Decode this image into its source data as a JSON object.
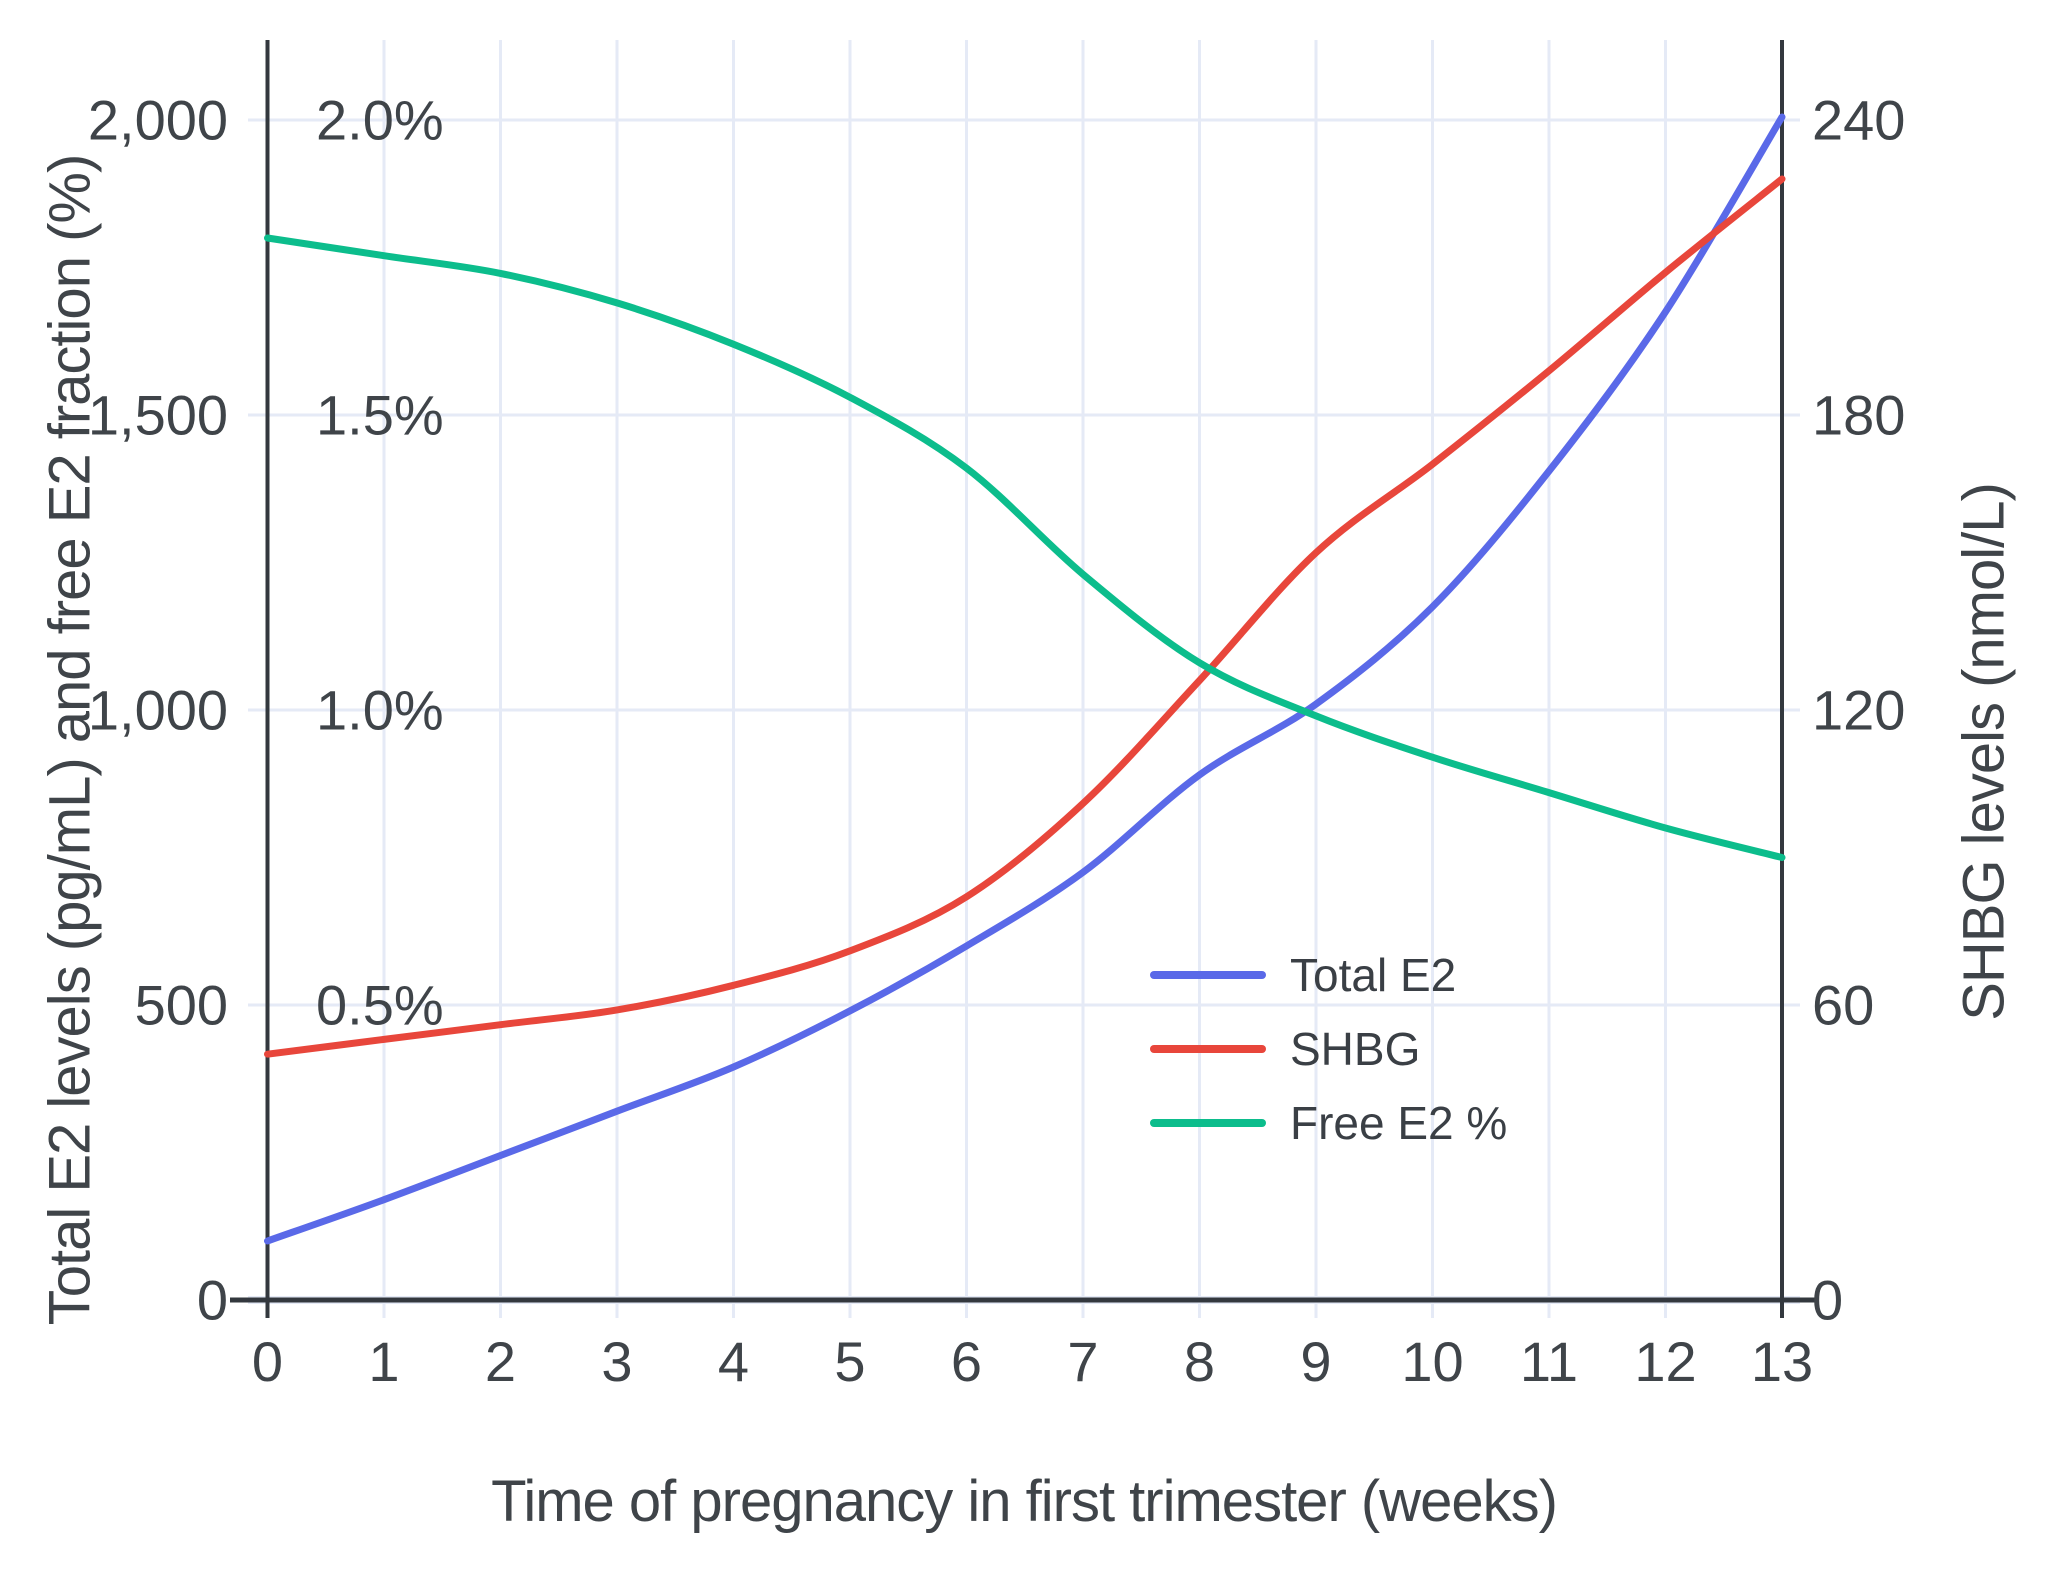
{
  "chart_data": {
    "type": "line",
    "title": "",
    "xlabel": "Time of pregnancy in first trimester (weeks)",
    "ylabel_left": "Total E2 levels (pg/mL) and free E2 fraction (%)",
    "ylabel_right": "SHBG levels (nmol/L)",
    "x": [
      0,
      1,
      2,
      3,
      4,
      5,
      6,
      7,
      8,
      9,
      10,
      11,
      12,
      13
    ],
    "x_ticks": [
      "0",
      "1",
      "2",
      "3",
      "4",
      "5",
      "6",
      "7",
      "8",
      "9",
      "10",
      "11",
      "12",
      "13"
    ],
    "series": [
      {
        "name": "Total E2",
        "axis": "left",
        "unit": "pg/mL",
        "color": "#5a69e8",
        "values": [
          100,
          170,
          245,
          320,
          395,
          490,
          600,
          725,
          890,
          1010,
          1175,
          1405,
          1675,
          2005
        ]
      },
      {
        "name": "SHBG",
        "axis": "right",
        "unit": "nmol/L",
        "color": "#e8463b",
        "values": [
          50,
          53,
          56,
          59,
          64,
          71,
          82,
          101,
          126,
          152,
          170,
          189,
          209,
          228
        ]
      },
      {
        "name": "Free E2 %",
        "axis": "left-percent",
        "unit": "%",
        "color": "#0cbd8c",
        "values": [
          1.8,
          1.77,
          1.74,
          1.69,
          1.62,
          1.53,
          1.41,
          1.23,
          1.08,
          0.99,
          0.92,
          0.86,
          0.8,
          0.75
        ]
      }
    ],
    "left_axis": {
      "range": [
        0,
        2135
      ],
      "ticks": [
        {
          "value": 0,
          "label": "0"
        },
        {
          "value": 500,
          "label": "500"
        },
        {
          "value": 1000,
          "label": "1,000"
        },
        {
          "value": 1500,
          "label": "1,500"
        },
        {
          "value": 2000,
          "label": "2,000"
        }
      ]
    },
    "percent_labels": [
      {
        "value": 500,
        "label": "0.5%"
      },
      {
        "value": 1000,
        "label": "1.0%"
      },
      {
        "value": 1500,
        "label": "1.5%"
      },
      {
        "value": 2000,
        "label": "2.0%"
      }
    ],
    "right_axis": {
      "range": [
        0,
        256
      ],
      "ticks": [
        {
          "value": 0,
          "label": "0"
        },
        {
          "value": 60,
          "label": "60"
        },
        {
          "value": 120,
          "label": "120"
        },
        {
          "value": 180,
          "label": "180"
        },
        {
          "value": 240,
          "label": "240"
        }
      ]
    },
    "legend": [
      "Total E2",
      "SHBG",
      "Free E2 %"
    ],
    "legend_position": "inside-middle-right",
    "grid": true
  },
  "colors": {
    "grid": "#e5eaf6",
    "axis": "#33383e",
    "tick_text": "#3f4449",
    "background": "#ffffff"
  }
}
